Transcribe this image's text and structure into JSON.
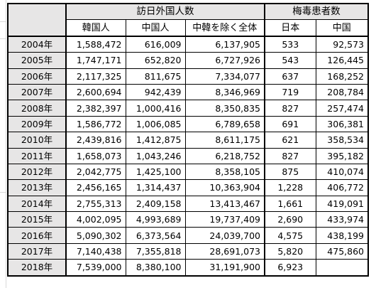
{
  "groups": {
    "visitors": "訪日外国人数",
    "syphilis": "梅毒患者数"
  },
  "columns": {
    "korea": "韓国人",
    "china": "中国人",
    "others": "中韓を除く全体",
    "japan": "日本",
    "china_cases": "中国"
  },
  "rows": [
    {
      "year": "2004年",
      "korea": "1,588,472",
      "china": "616,009",
      "others": "6,137,905",
      "japan": "533",
      "china_cases": "92,573"
    },
    {
      "year": "2005年",
      "korea": "1,747,171",
      "china": "652,820",
      "others": "6,727,926",
      "japan": "543",
      "china_cases": "126,445"
    },
    {
      "year": "2006年",
      "korea": "2,117,325",
      "china": "811,675",
      "others": "7,334,077",
      "japan": "637",
      "china_cases": "168,252"
    },
    {
      "year": "2007年",
      "korea": "2,600,694",
      "china": "942,439",
      "others": "8,346,969",
      "japan": "719",
      "china_cases": "208,784"
    },
    {
      "year": "2008年",
      "korea": "2,382,397",
      "china": "1,000,416",
      "others": "8,350,835",
      "japan": "827",
      "china_cases": "257,474"
    },
    {
      "year": "2009年",
      "korea": "1,586,772",
      "china": "1,006,085",
      "others": "6,789,658",
      "japan": "691",
      "china_cases": "306,381"
    },
    {
      "year": "2010年",
      "korea": "2,439,816",
      "china": "1,412,875",
      "others": "8,611,175",
      "japan": "621",
      "china_cases": "358,534"
    },
    {
      "year": "2011年",
      "korea": "1,658,073",
      "china": "1,043,246",
      "others": "6,218,752",
      "japan": "827",
      "china_cases": "395,182"
    },
    {
      "year": "2012年",
      "korea": "2,042,775",
      "china": "1,425,100",
      "others": "8,358,105",
      "japan": "875",
      "china_cases": "410,074"
    },
    {
      "year": "2013年",
      "korea": "2,456,165",
      "china": "1,314,437",
      "others": "10,363,904",
      "japan": "1,228",
      "china_cases": "406,772"
    },
    {
      "year": "2014年",
      "korea": "2,755,313",
      "china": "2,409,158",
      "others": "13,413,467",
      "japan": "1,661",
      "china_cases": "419,091"
    },
    {
      "year": "2015年",
      "korea": "4,002,095",
      "china": "4,993,689",
      "others": "19,737,409",
      "japan": "2,690",
      "china_cases": "433,974"
    },
    {
      "year": "2016年",
      "korea": "5,090,302",
      "china": "6,373,564",
      "others": "24,039,700",
      "japan": "4,575",
      "china_cases": "438,199"
    },
    {
      "year": "2017年",
      "korea": "7,140,438",
      "china": "7,355,818",
      "others": "28,691,073",
      "japan": "5,820",
      "china_cases": "475,860"
    },
    {
      "year": "2018年",
      "korea": "7,539,000",
      "china": "8,380,100",
      "others": "31,191,900",
      "japan": "6,923",
      "china_cases": ""
    }
  ]
}
